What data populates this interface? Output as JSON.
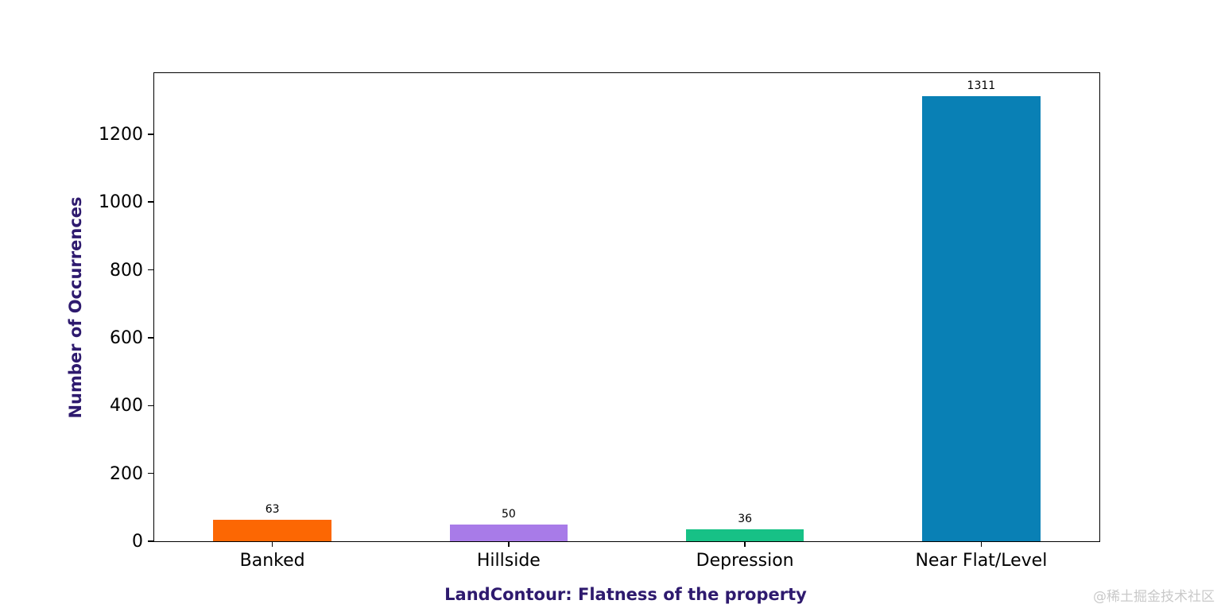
{
  "chart_data": {
    "type": "bar",
    "categories": [
      "Banked",
      "Hillside",
      "Depression",
      "Near Flat/Level"
    ],
    "values": [
      63,
      50,
      36,
      1311
    ],
    "value_labels": [
      "63",
      "50",
      "36",
      "1311"
    ],
    "bar_colors": [
      "#fc6703",
      "#a87be8",
      "#17c186",
      "#0980b5"
    ],
    "title": "",
    "xlabel": "LandContour: Flatness of the property",
    "ylabel": "Number of Occurrences",
    "ylim": [
      0,
      1380
    ],
    "yticks": [
      0,
      200,
      400,
      600,
      800,
      1000,
      1200
    ],
    "grid": false,
    "legend": null,
    "bar_width_fraction": 0.5
  },
  "colors": {
    "axis_label_color": "#2e1a6e",
    "tick_label_color": "#000000",
    "watermark_color": "#c9c9c9",
    "spine_color": "#000000",
    "background": "#ffffff"
  },
  "watermark": "@稀土掘金技术社区"
}
